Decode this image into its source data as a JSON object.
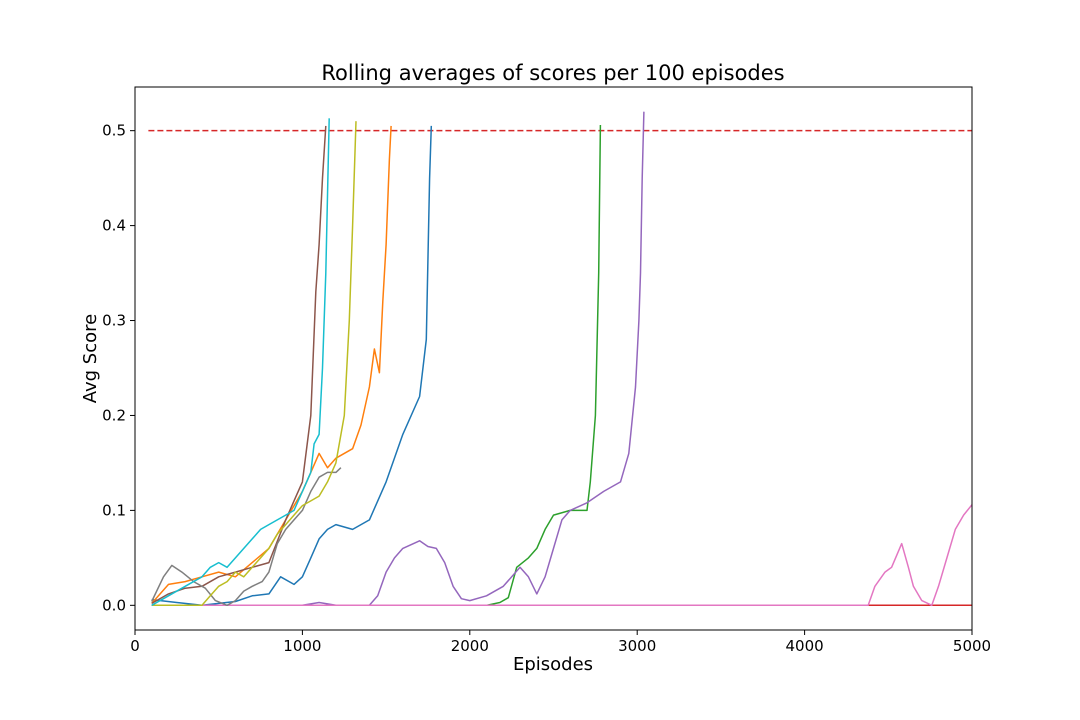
{
  "chart_data": {
    "type": "line",
    "title": "Rolling averages of scores per 100 episodes",
    "xlabel": "Episodes",
    "ylabel": "Avg Score",
    "xlim": [
      0,
      5000
    ],
    "ylim": [
      -0.026,
      0.546
    ],
    "x_ticks": [
      0,
      1000,
      2000,
      3000,
      4000,
      5000
    ],
    "x_tick_labels": [
      "0",
      "1000",
      "2000",
      "3000",
      "4000",
      "5000"
    ],
    "y_ticks": [
      0.0,
      0.1,
      0.2,
      0.3,
      0.4,
      0.5
    ],
    "y_tick_labels": [
      "0.0",
      "0.1",
      "0.2",
      "0.3",
      "0.4",
      "0.5"
    ],
    "grid": false,
    "legend": "none",
    "target_line": {
      "y": 0.5,
      "color": "#d62728",
      "style": "dashed",
      "x_range": [
        80,
        5000
      ]
    },
    "series": [
      {
        "color": "#1f77b4",
        "points": [
          [
            100,
            0.006
          ],
          [
            250,
            0.003
          ],
          [
            400,
            0.0
          ],
          [
            600,
            0.004
          ],
          [
            700,
            0.01
          ],
          [
            800,
            0.012
          ],
          [
            870,
            0.03
          ],
          [
            950,
            0.022
          ],
          [
            1000,
            0.03
          ],
          [
            1050,
            0.05
          ],
          [
            1100,
            0.07
          ],
          [
            1150,
            0.08
          ],
          [
            1200,
            0.085
          ],
          [
            1300,
            0.08
          ],
          [
            1400,
            0.09
          ],
          [
            1500,
            0.13
          ],
          [
            1600,
            0.18
          ],
          [
            1700,
            0.22
          ],
          [
            1740,
            0.28
          ],
          [
            1760,
            0.45
          ],
          [
            1770,
            0.505
          ]
        ]
      },
      {
        "color": "#ff7f0e",
        "points": [
          [
            100,
            0.002
          ],
          [
            200,
            0.022
          ],
          [
            300,
            0.025
          ],
          [
            400,
            0.03
          ],
          [
            500,
            0.035
          ],
          [
            600,
            0.03
          ],
          [
            700,
            0.045
          ],
          [
            800,
            0.06
          ],
          [
            900,
            0.09
          ],
          [
            1000,
            0.12
          ],
          [
            1050,
            0.14
          ],
          [
            1100,
            0.16
          ],
          [
            1150,
            0.145
          ],
          [
            1200,
            0.155
          ],
          [
            1300,
            0.165
          ],
          [
            1350,
            0.19
          ],
          [
            1400,
            0.23
          ],
          [
            1430,
            0.27
          ],
          [
            1460,
            0.245
          ],
          [
            1480,
            0.32
          ],
          [
            1500,
            0.38
          ],
          [
            1520,
            0.47
          ],
          [
            1530,
            0.505
          ]
        ]
      },
      {
        "color": "#2ca02c",
        "points": [
          [
            100,
            0.0
          ],
          [
            2100,
            0.0
          ],
          [
            2180,
            0.003
          ],
          [
            2230,
            0.008
          ],
          [
            2280,
            0.04
          ],
          [
            2350,
            0.05
          ],
          [
            2400,
            0.06
          ],
          [
            2450,
            0.08
          ],
          [
            2500,
            0.095
          ],
          [
            2600,
            0.1
          ],
          [
            2700,
            0.1
          ],
          [
            2720,
            0.13
          ],
          [
            2750,
            0.2
          ],
          [
            2770,
            0.35
          ],
          [
            2780,
            0.506
          ]
        ]
      },
      {
        "color": "#d62728",
        "points": [
          [
            100,
            0.0
          ],
          [
            5000,
            0.0
          ]
        ]
      },
      {
        "color": "#9467bd",
        "points": [
          [
            100,
            0.0
          ],
          [
            1000,
            0.0
          ],
          [
            1100,
            0.003
          ],
          [
            1200,
            0.0
          ],
          [
            1400,
            0.0
          ],
          [
            1450,
            0.01
          ],
          [
            1500,
            0.035
          ],
          [
            1550,
            0.05
          ],
          [
            1600,
            0.06
          ],
          [
            1700,
            0.068
          ],
          [
            1750,
            0.062
          ],
          [
            1800,
            0.06
          ],
          [
            1850,
            0.045
          ],
          [
            1900,
            0.02
          ],
          [
            1950,
            0.007
          ],
          [
            2000,
            0.005
          ],
          [
            2100,
            0.01
          ],
          [
            2200,
            0.02
          ],
          [
            2300,
            0.04
          ],
          [
            2350,
            0.03
          ],
          [
            2400,
            0.012
          ],
          [
            2450,
            0.03
          ],
          [
            2500,
            0.06
          ],
          [
            2550,
            0.09
          ],
          [
            2600,
            0.1
          ],
          [
            2700,
            0.108
          ],
          [
            2800,
            0.12
          ],
          [
            2900,
            0.13
          ],
          [
            2950,
            0.16
          ],
          [
            2990,
            0.23
          ],
          [
            3010,
            0.3
          ],
          [
            3020,
            0.35
          ],
          [
            3030,
            0.45
          ],
          [
            3040,
            0.52
          ]
        ]
      },
      {
        "color": "#8c564b",
        "points": [
          [
            100,
            0.002
          ],
          [
            200,
            0.012
          ],
          [
            300,
            0.018
          ],
          [
            400,
            0.02
          ],
          [
            500,
            0.03
          ],
          [
            600,
            0.035
          ],
          [
            700,
            0.04
          ],
          [
            800,
            0.045
          ],
          [
            900,
            0.09
          ],
          [
            950,
            0.11
          ],
          [
            1000,
            0.13
          ],
          [
            1050,
            0.2
          ],
          [
            1080,
            0.33
          ],
          [
            1100,
            0.38
          ],
          [
            1120,
            0.45
          ],
          [
            1140,
            0.505
          ]
        ]
      },
      {
        "color": "#e377c2",
        "points": [
          [
            100,
            0.0
          ],
          [
            4380,
            0.0
          ],
          [
            4420,
            0.02
          ],
          [
            4480,
            0.035
          ],
          [
            4520,
            0.04
          ],
          [
            4580,
            0.065
          ],
          [
            4620,
            0.04
          ],
          [
            4650,
            0.02
          ],
          [
            4700,
            0.005
          ],
          [
            4760,
            0.0
          ],
          [
            4800,
            0.02
          ],
          [
            4850,
            0.05
          ],
          [
            4900,
            0.08
          ],
          [
            4950,
            0.095
          ],
          [
            5000,
            0.106
          ]
        ]
      },
      {
        "color": "#7f7f7f",
        "points": [
          [
            100,
            0.004
          ],
          [
            170,
            0.03
          ],
          [
            220,
            0.042
          ],
          [
            280,
            0.035
          ],
          [
            350,
            0.025
          ],
          [
            420,
            0.018
          ],
          [
            480,
            0.005
          ],
          [
            550,
            0.0
          ],
          [
            600,
            0.005
          ],
          [
            650,
            0.015
          ],
          [
            700,
            0.02
          ],
          [
            760,
            0.025
          ],
          [
            800,
            0.035
          ],
          [
            850,
            0.065
          ],
          [
            900,
            0.08
          ],
          [
            950,
            0.09
          ],
          [
            1000,
            0.1
          ],
          [
            1050,
            0.12
          ],
          [
            1100,
            0.135
          ],
          [
            1150,
            0.14
          ],
          [
            1200,
            0.14
          ],
          [
            1230,
            0.145
          ]
        ]
      },
      {
        "color": "#bcbd22",
        "points": [
          [
            100,
            0.0
          ],
          [
            400,
            0.0
          ],
          [
            450,
            0.01
          ],
          [
            500,
            0.02
          ],
          [
            550,
            0.025
          ],
          [
            600,
            0.035
          ],
          [
            650,
            0.03
          ],
          [
            700,
            0.04
          ],
          [
            750,
            0.05
          ],
          [
            800,
            0.06
          ],
          [
            850,
            0.075
          ],
          [
            900,
            0.085
          ],
          [
            950,
            0.095
          ],
          [
            1000,
            0.105
          ],
          [
            1050,
            0.11
          ],
          [
            1100,
            0.115
          ],
          [
            1150,
            0.13
          ],
          [
            1200,
            0.15
          ],
          [
            1250,
            0.2
          ],
          [
            1280,
            0.3
          ],
          [
            1300,
            0.4
          ],
          [
            1320,
            0.51
          ]
        ]
      },
      {
        "color": "#17becf",
        "points": [
          [
            100,
            0.0
          ],
          [
            200,
            0.01
          ],
          [
            300,
            0.02
          ],
          [
            400,
            0.03
          ],
          [
            450,
            0.04
          ],
          [
            500,
            0.045
          ],
          [
            550,
            0.04
          ],
          [
            600,
            0.05
          ],
          [
            650,
            0.06
          ],
          [
            700,
            0.07
          ],
          [
            750,
            0.08
          ],
          [
            800,
            0.085
          ],
          [
            850,
            0.09
          ],
          [
            900,
            0.095
          ],
          [
            950,
            0.1
          ],
          [
            1000,
            0.12
          ],
          [
            1050,
            0.14
          ],
          [
            1070,
            0.17
          ],
          [
            1100,
            0.18
          ],
          [
            1120,
            0.25
          ],
          [
            1140,
            0.35
          ],
          [
            1160,
            0.513
          ]
        ]
      }
    ]
  }
}
